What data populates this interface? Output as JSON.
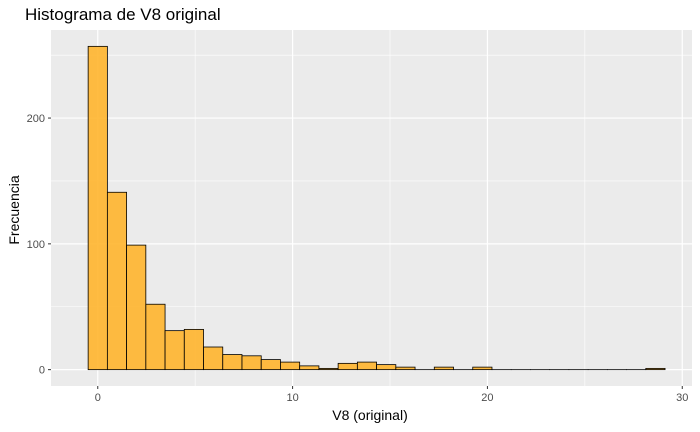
{
  "chart_data": {
    "type": "bar",
    "title": "Histograma de V8 original",
    "xlabel": "V8 (original)",
    "ylabel": "Frecuencia",
    "bin_width": 0.987,
    "x": [
      0.0,
      0.987,
      1.974,
      2.961,
      3.948,
      4.935,
      5.922,
      6.909,
      7.896,
      8.883,
      9.87,
      10.857,
      11.844,
      12.831,
      13.818,
      14.805,
      15.792,
      16.779,
      17.766,
      18.753,
      19.74,
      20.727,
      21.714,
      22.701,
      23.688,
      24.675,
      25.662,
      26.649,
      27.636,
      28.623
    ],
    "values": [
      257,
      141,
      99,
      52,
      31,
      32,
      18,
      12,
      11,
      8,
      6,
      3,
      1,
      5,
      6,
      4,
      2,
      0,
      2,
      0,
      2,
      0,
      0,
      0,
      0,
      0,
      0,
      0,
      0,
      1
    ],
    "xlim": [
      -2.4,
      30.5
    ],
    "ylim": [
      -13,
      270
    ],
    "xticks": [
      0,
      10,
      20,
      30
    ],
    "yticks": [
      0,
      100,
      200
    ],
    "xminor": [
      -5,
      5,
      15,
      25
    ],
    "yminor": [
      50,
      150,
      250
    ],
    "grid": true,
    "colors": {
      "panel_background": "#EBEBEB",
      "grid_major": "#FFFFFF",
      "bar_fill": "#FFB52E",
      "bar_stroke": "#000000",
      "tick_text": "#4D4D4D",
      "axis_text": "#000000"
    }
  }
}
